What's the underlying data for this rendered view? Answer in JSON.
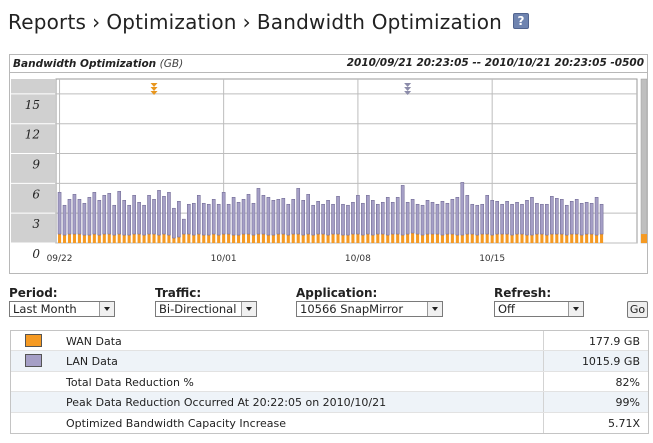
{
  "breadcrumb": {
    "items": [
      "Reports",
      "Optimization",
      "Bandwidth Optimization"
    ],
    "separator": "›"
  },
  "help_label": "?",
  "chart_header": {
    "title": "Bandwidth Optimization",
    "unit": "(GB)",
    "range": "2010/09/21 20:23:05 -- 2010/10/21 20:23:05 -0500"
  },
  "chart_data": {
    "type": "bar",
    "stacked": true,
    "y_ticks": [
      0,
      3,
      6,
      9,
      12,
      15
    ],
    "ylim": [
      0,
      16.5
    ],
    "x_tick_labels": [
      {
        "label": "09/22",
        "index": 0
      },
      {
        "label": "10/01",
        "index": 33
      },
      {
        "label": "10/08",
        "index": 60
      },
      {
        "label": "10/15",
        "index": 87
      }
    ],
    "grid": true,
    "markers": [
      {
        "index": 19,
        "color": "#e8961e"
      },
      {
        "index": 70,
        "color": "#8c8caa"
      }
    ],
    "series": [
      {
        "name": "WAN Data",
        "color": "#f59a23",
        "values": [
          0.9,
          0.8,
          0.9,
          0.9,
          0.9,
          0.8,
          0.8,
          0.9,
          0.8,
          0.9,
          0.9,
          0.8,
          0.9,
          0.8,
          0.8,
          0.9,
          0.9,
          0.8,
          0.9,
          0.9,
          0.8,
          0.9,
          0.8,
          0.5,
          0.6,
          0.9,
          0.9,
          0.8,
          0.9,
          0.8,
          0.8,
          0.9,
          0.8,
          0.9,
          0.9,
          0.8,
          0.8,
          0.9,
          0.9,
          0.8,
          0.9,
          0.9,
          0.8,
          0.8,
          0.9,
          0.9,
          0.8,
          0.9,
          0.9,
          0.8,
          0.9,
          0.8,
          0.9,
          0.9,
          0.8,
          0.9,
          0.9,
          0.8,
          0.8,
          0.9,
          0.9,
          0.8,
          0.9,
          0.8,
          0.9,
          0.9,
          0.8,
          0.9,
          0.9,
          0.8,
          0.9,
          1.0,
          0.9,
          0.8,
          0.9,
          0.9,
          0.9,
          0.8,
          0.9,
          0.9,
          0.8,
          0.8,
          0.9,
          0.9,
          0.8,
          0.9,
          0.9,
          0.8,
          0.9,
          0.9,
          0.9,
          0.8,
          0.9,
          0.9,
          0.8,
          0.8,
          0.9,
          0.9,
          0.8,
          0.9,
          0.9,
          0.9,
          0.8,
          0.9,
          0.9,
          0.8,
          0.9,
          0.9,
          0.8,
          0.9
        ]
      },
      {
        "name": "LAN Data",
        "color": "#a59fc6",
        "values": [
          4.2,
          3.0,
          3.5,
          4.0,
          3.5,
          3.2,
          3.8,
          4.2,
          3.5,
          3.9,
          4.1,
          3.0,
          4.3,
          3.5,
          3.0,
          3.9,
          3.2,
          3.0,
          3.9,
          3.5,
          4.5,
          3.8,
          4.3,
          3.0,
          3.6,
          1.5,
          3.0,
          3.2,
          3.9,
          3.2,
          3.1,
          3.5,
          3.1,
          4.2,
          3.0,
          3.8,
          3.3,
          3.5,
          4.0,
          3.2,
          4.6,
          3.9,
          3.8,
          3.5,
          3.5,
          3.6,
          3.1,
          3.5,
          4.6,
          3.5,
          4.0,
          3.0,
          3.3,
          3.0,
          3.5,
          3.0,
          3.8,
          3.1,
          3.0,
          3.2,
          3.9,
          3.2,
          3.9,
          3.5,
          3.0,
          3.2,
          3.8,
          3.2,
          3.7,
          5.0,
          3.2,
          3.4,
          3.0,
          3.0,
          3.4,
          3.2,
          3.0,
          3.4,
          3.1,
          3.5,
          3.8,
          5.3,
          3.9,
          3.0,
          3.0,
          3.0,
          3.9,
          3.5,
          3.3,
          3.0,
          3.3,
          3.1,
          3.2,
          3.0,
          3.5,
          3.8,
          3.1,
          3.0,
          3.1,
          3.8,
          3.6,
          3.5,
          3.0,
          3.3,
          3.5,
          3.2,
          3.2,
          3.1,
          3.8,
          3.0
        ]
      }
    ]
  },
  "controls": {
    "period": {
      "label": "Period:",
      "value": "Last Month"
    },
    "traffic": {
      "label": "Traffic:",
      "value": "Bi-Directional"
    },
    "application": {
      "label": "Application:",
      "value": "10566 SnapMirror"
    },
    "refresh": {
      "label": "Refresh:",
      "value": "Off"
    },
    "go_label": "Go"
  },
  "summary": {
    "rows": [
      {
        "label": "WAN Data",
        "value": "177.9 GB",
        "swatch": "#f59a23"
      },
      {
        "label": "LAN Data",
        "value": "1015.9 GB",
        "swatch": "#a59fc6"
      },
      {
        "label": "Total Data Reduction %",
        "value": "82%"
      },
      {
        "label": "Peak Data Reduction Occurred At 20:22:05 on 2010/10/21",
        "value": "99%"
      },
      {
        "label": "Optimized Bandwidth Capacity Increase",
        "value": "5.71X"
      }
    ]
  }
}
